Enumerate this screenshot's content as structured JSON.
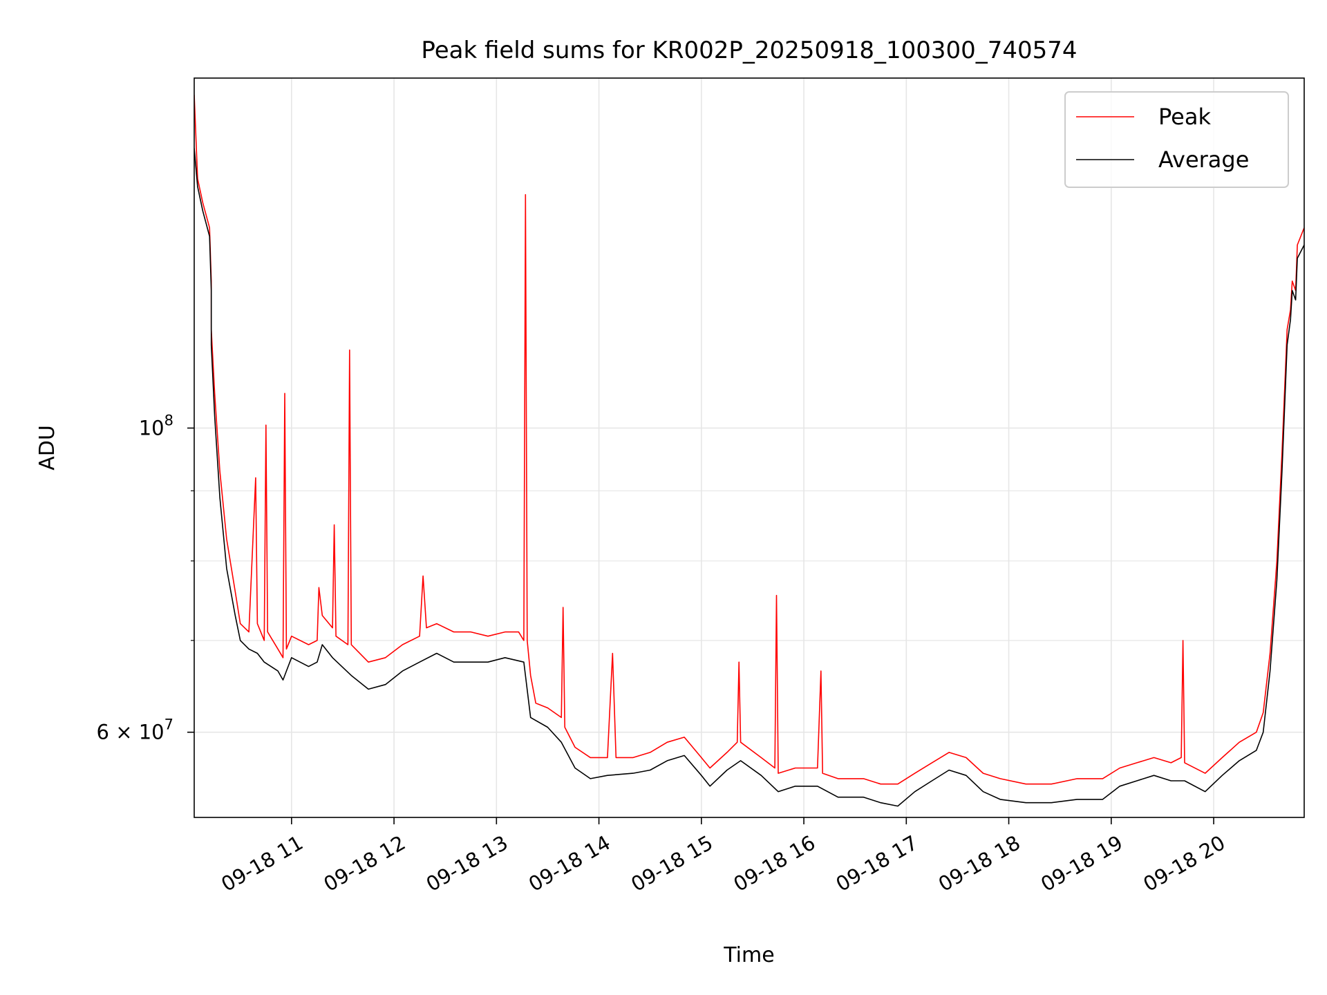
{
  "chart_data": {
    "type": "line",
    "title": "Peak field sums for KR002P_20250918_100300_740574",
    "xlabel": "Time",
    "ylabel": "ADU",
    "x_scale": "time",
    "y_scale": "log",
    "xlim": [
      "2025-09-18 10:03",
      "2025-09-18 20:53"
    ],
    "ylim": [
      52000000,
      180000000
    ],
    "x_ticks": [
      {
        "t": "2025-09-18 11:00",
        "label": "09-18 11"
      },
      {
        "t": "2025-09-18 12:00",
        "label": "09-18 12"
      },
      {
        "t": "2025-09-18 13:00",
        "label": "09-18 13"
      },
      {
        "t": "2025-09-18 14:00",
        "label": "09-18 14"
      },
      {
        "t": "2025-09-18 15:00",
        "label": "09-18 15"
      },
      {
        "t": "2025-09-18 16:00",
        "label": "09-18 16"
      },
      {
        "t": "2025-09-18 17:00",
        "label": "09-18 17"
      },
      {
        "t": "2025-09-18 18:00",
        "label": "09-18 18"
      },
      {
        "t": "2025-09-18 19:00",
        "label": "09-18 19"
      },
      {
        "t": "2025-09-18 20:00",
        "label": "09-18 20"
      }
    ],
    "y_major_ticks": [
      {
        "value": 100000000,
        "label_base": "10",
        "label_exp": "8"
      },
      {
        "value": 60000000,
        "label_base": "6 × 10",
        "label_exp": "7"
      }
    ],
    "y_minor_ticks": [
      70000000,
      80000000,
      90000000
    ],
    "grid": true,
    "legend_position": "top-right",
    "colors": {
      "peak": "#ff0000",
      "average": "#000000",
      "grid": "#e6e6e6"
    },
    "series": [
      {
        "name": "Peak",
        "color": "#ff0000",
        "points": [
          [
            "2025-09-18 10:03",
            175000000
          ],
          [
            "2025-09-18 10:05",
            152000000
          ],
          [
            "2025-09-18 10:08",
            146000000
          ],
          [
            "2025-09-18 10:12",
            140000000
          ],
          [
            "2025-09-18 10:13",
            128000000
          ],
          [
            "2025-09-18 10:13",
            118000000
          ],
          [
            "2025-09-18 10:15",
            106000000
          ],
          [
            "2025-09-18 10:18",
            93000000
          ],
          [
            "2025-09-18 10:22",
            83000000
          ],
          [
            "2025-09-18 10:27",
            76000000
          ],
          [
            "2025-09-18 10:30",
            72000000
          ],
          [
            "2025-09-18 10:35",
            71000000
          ],
          [
            "2025-09-18 10:39",
            92000000
          ],
          [
            "2025-09-18 10:40",
            72000000
          ],
          [
            "2025-09-18 10:44",
            70000000
          ],
          [
            "2025-09-18 10:45",
            100500000
          ],
          [
            "2025-09-18 10:46",
            71000000
          ],
          [
            "2025-09-18 10:52",
            69000000
          ],
          [
            "2025-09-18 10:55",
            68000000
          ],
          [
            "2025-09-18 10:56",
            106000000
          ],
          [
            "2025-09-18 10:57",
            69000000
          ],
          [
            "2025-09-18 11:00",
            70500000
          ],
          [
            "2025-09-18 11:10",
            69500000
          ],
          [
            "2025-09-18 11:15",
            70000000
          ],
          [
            "2025-09-18 11:16",
            76500000
          ],
          [
            "2025-09-18 11:18",
            73000000
          ],
          [
            "2025-09-18 11:24",
            71500000
          ],
          [
            "2025-09-18 11:25",
            85000000
          ],
          [
            "2025-09-18 11:26",
            70500000
          ],
          [
            "2025-09-18 11:33",
            69500000
          ],
          [
            "2025-09-18 11:34",
            114000000
          ],
          [
            "2025-09-18 11:35",
            69500000
          ],
          [
            "2025-09-18 11:45",
            67500000
          ],
          [
            "2025-09-18 11:55",
            68000000
          ],
          [
            "2025-09-18 12:05",
            69500000
          ],
          [
            "2025-09-18 12:15",
            70500000
          ],
          [
            "2025-09-18 12:17",
            78000000
          ],
          [
            "2025-09-18 12:19",
            71500000
          ],
          [
            "2025-09-18 12:25",
            72000000
          ],
          [
            "2025-09-18 12:35",
            71000000
          ],
          [
            "2025-09-18 12:45",
            71000000
          ],
          [
            "2025-09-18 12:55",
            70500000
          ],
          [
            "2025-09-18 13:05",
            71000000
          ],
          [
            "2025-09-18 13:13",
            71000000
          ],
          [
            "2025-09-18 13:16",
            70000000
          ],
          [
            "2025-09-18 13:17",
            148000000
          ],
          [
            "2025-09-18 13:18",
            70000000
          ],
          [
            "2025-09-18 13:20",
            66000000
          ],
          [
            "2025-09-18 13:23",
            63000000
          ],
          [
            "2025-09-18 13:30",
            62500000
          ],
          [
            "2025-09-18 13:38",
            61500000
          ],
          [
            "2025-09-18 13:39",
            74000000
          ],
          [
            "2025-09-18 13:40",
            60500000
          ],
          [
            "2025-09-18 13:46",
            58500000
          ],
          [
            "2025-09-18 13:55",
            57500000
          ],
          [
            "2025-09-18 14:05",
            57500000
          ],
          [
            "2025-09-18 14:08",
            68500000
          ],
          [
            "2025-09-18 14:10",
            57500000
          ],
          [
            "2025-09-18 14:20",
            57500000
          ],
          [
            "2025-09-18 14:30",
            58000000
          ],
          [
            "2025-09-18 14:40",
            59000000
          ],
          [
            "2025-09-18 14:50",
            59500000
          ],
          [
            "2025-09-18 15:00",
            57500000
          ],
          [
            "2025-09-18 15:05",
            56500000
          ],
          [
            "2025-09-18 15:15",
            58000000
          ],
          [
            "2025-09-18 15:21",
            59000000
          ],
          [
            "2025-09-18 15:22",
            67500000
          ],
          [
            "2025-09-18 15:23",
            59000000
          ],
          [
            "2025-09-18 15:35",
            57500000
          ],
          [
            "2025-09-18 15:43",
            56500000
          ],
          [
            "2025-09-18 15:44",
            75500000
          ],
          [
            "2025-09-18 15:45",
            56000000
          ],
          [
            "2025-09-18 15:55",
            56500000
          ],
          [
            "2025-09-18 16:08",
            56500000
          ],
          [
            "2025-09-18 16:10",
            66500000
          ],
          [
            "2025-09-18 16:11",
            56000000
          ],
          [
            "2025-09-18 16:20",
            55500000
          ],
          [
            "2025-09-18 16:35",
            55500000
          ],
          [
            "2025-09-18 16:45",
            55000000
          ],
          [
            "2025-09-18 16:55",
            55000000
          ],
          [
            "2025-09-18 17:05",
            56000000
          ],
          [
            "2025-09-18 17:15",
            57000000
          ],
          [
            "2025-09-18 17:25",
            58000000
          ],
          [
            "2025-09-18 17:35",
            57500000
          ],
          [
            "2025-09-18 17:45",
            56000000
          ],
          [
            "2025-09-18 17:55",
            55500000
          ],
          [
            "2025-09-18 18:10",
            55000000
          ],
          [
            "2025-09-18 18:25",
            55000000
          ],
          [
            "2025-09-18 18:40",
            55500000
          ],
          [
            "2025-09-18 18:55",
            55500000
          ],
          [
            "2025-09-18 19:05",
            56500000
          ],
          [
            "2025-09-18 19:15",
            57000000
          ],
          [
            "2025-09-18 19:25",
            57500000
          ],
          [
            "2025-09-18 19:35",
            57000000
          ],
          [
            "2025-09-18 19:41",
            57500000
          ],
          [
            "2025-09-18 19:42",
            70000000
          ],
          [
            "2025-09-18 19:43",
            57000000
          ],
          [
            "2025-09-18 19:55",
            56000000
          ],
          [
            "2025-09-18 20:05",
            57500000
          ],
          [
            "2025-09-18 20:15",
            59000000
          ],
          [
            "2025-09-18 20:25",
            60000000
          ],
          [
            "2025-09-18 20:29",
            62000000
          ],
          [
            "2025-09-18 20:33",
            68500000
          ],
          [
            "2025-09-18 20:37",
            80000000
          ],
          [
            "2025-09-18 20:40",
            96000000
          ],
          [
            "2025-09-18 20:43",
            118000000
          ],
          [
            "2025-09-18 20:45",
            122000000
          ],
          [
            "2025-09-18 20:46",
            128000000
          ],
          [
            "2025-09-18 20:48",
            126000000
          ],
          [
            "2025-09-18 20:49",
            136000000
          ],
          [
            "2025-09-18 20:53",
            140000000
          ]
        ]
      },
      {
        "name": "Average",
        "color": "#000000",
        "points": [
          [
            "2025-09-18 10:03",
            160000000
          ],
          [
            "2025-09-18 10:05",
            150000000
          ],
          [
            "2025-09-18 10:08",
            144000000
          ],
          [
            "2025-09-18 10:12",
            138000000
          ],
          [
            "2025-09-18 10:13",
            126000000
          ],
          [
            "2025-09-18 10:13",
            115000000
          ],
          [
            "2025-09-18 10:15",
            102000000
          ],
          [
            "2025-09-18 10:18",
            89000000
          ],
          [
            "2025-09-18 10:22",
            79000000
          ],
          [
            "2025-09-18 10:27",
            73000000
          ],
          [
            "2025-09-18 10:30",
            70000000
          ],
          [
            "2025-09-18 10:35",
            69000000
          ],
          [
            "2025-09-18 10:40",
            68500000
          ],
          [
            "2025-09-18 10:44",
            67500000
          ],
          [
            "2025-09-18 10:52",
            66500000
          ],
          [
            "2025-09-18 10:55",
            65500000
          ],
          [
            "2025-09-18 10:57",
            66500000
          ],
          [
            "2025-09-18 11:00",
            68000000
          ],
          [
            "2025-09-18 11:10",
            67000000
          ],
          [
            "2025-09-18 11:15",
            67500000
          ],
          [
            "2025-09-18 11:18",
            69500000
          ],
          [
            "2025-09-18 11:24",
            68000000
          ],
          [
            "2025-09-18 11:35",
            66000000
          ],
          [
            "2025-09-18 11:45",
            64500000
          ],
          [
            "2025-09-18 11:55",
            65000000
          ],
          [
            "2025-09-18 12:05",
            66500000
          ],
          [
            "2025-09-18 12:15",
            67500000
          ],
          [
            "2025-09-18 12:25",
            68500000
          ],
          [
            "2025-09-18 12:35",
            67500000
          ],
          [
            "2025-09-18 12:45",
            67500000
          ],
          [
            "2025-09-18 12:55",
            67500000
          ],
          [
            "2025-09-18 13:05",
            68000000
          ],
          [
            "2025-09-18 13:16",
            67500000
          ],
          [
            "2025-09-18 13:20",
            61500000
          ],
          [
            "2025-09-18 13:30",
            60500000
          ],
          [
            "2025-09-18 13:38",
            59000000
          ],
          [
            "2025-09-18 13:46",
            56500000
          ],
          [
            "2025-09-18 13:55",
            55500000
          ],
          [
            "2025-09-18 14:05",
            55800000
          ],
          [
            "2025-09-18 14:20",
            56000000
          ],
          [
            "2025-09-18 14:30",
            56300000
          ],
          [
            "2025-09-18 14:40",
            57200000
          ],
          [
            "2025-09-18 14:50",
            57700000
          ],
          [
            "2025-09-18 15:00",
            55800000
          ],
          [
            "2025-09-18 15:05",
            54800000
          ],
          [
            "2025-09-18 15:15",
            56300000
          ],
          [
            "2025-09-18 15:23",
            57200000
          ],
          [
            "2025-09-18 15:35",
            55800000
          ],
          [
            "2025-09-18 15:45",
            54300000
          ],
          [
            "2025-09-18 15:55",
            54800000
          ],
          [
            "2025-09-18 16:08",
            54800000
          ],
          [
            "2025-09-18 16:20",
            53800000
          ],
          [
            "2025-09-18 16:35",
            53800000
          ],
          [
            "2025-09-18 16:45",
            53300000
          ],
          [
            "2025-09-18 16:55",
            53000000
          ],
          [
            "2025-09-18 17:05",
            54300000
          ],
          [
            "2025-09-18 17:15",
            55300000
          ],
          [
            "2025-09-18 17:25",
            56300000
          ],
          [
            "2025-09-18 17:35",
            55800000
          ],
          [
            "2025-09-18 17:45",
            54300000
          ],
          [
            "2025-09-18 17:55",
            53600000
          ],
          [
            "2025-09-18 18:10",
            53300000
          ],
          [
            "2025-09-18 18:25",
            53300000
          ],
          [
            "2025-09-18 18:40",
            53600000
          ],
          [
            "2025-09-18 18:55",
            53600000
          ],
          [
            "2025-09-18 19:05",
            54800000
          ],
          [
            "2025-09-18 19:15",
            55300000
          ],
          [
            "2025-09-18 19:25",
            55800000
          ],
          [
            "2025-09-18 19:35",
            55300000
          ],
          [
            "2025-09-18 19:43",
            55300000
          ],
          [
            "2025-09-18 19:55",
            54300000
          ],
          [
            "2025-09-18 20:05",
            55800000
          ],
          [
            "2025-09-18 20:15",
            57200000
          ],
          [
            "2025-09-18 20:25",
            58200000
          ],
          [
            "2025-09-18 20:29",
            60000000
          ],
          [
            "2025-09-18 20:33",
            66500000
          ],
          [
            "2025-09-18 20:37",
            77500000
          ],
          [
            "2025-09-18 20:40",
            93000000
          ],
          [
            "2025-09-18 20:43",
            115000000
          ],
          [
            "2025-09-18 20:45",
            120000000
          ],
          [
            "2025-09-18 20:46",
            126000000
          ],
          [
            "2025-09-18 20:48",
            124000000
          ],
          [
            "2025-09-18 20:49",
            133000000
          ],
          [
            "2025-09-18 20:53",
            136000000
          ]
        ]
      }
    ],
    "legend": [
      {
        "label": "Peak",
        "color": "#ff0000"
      },
      {
        "label": "Average",
        "color": "#000000"
      }
    ]
  }
}
